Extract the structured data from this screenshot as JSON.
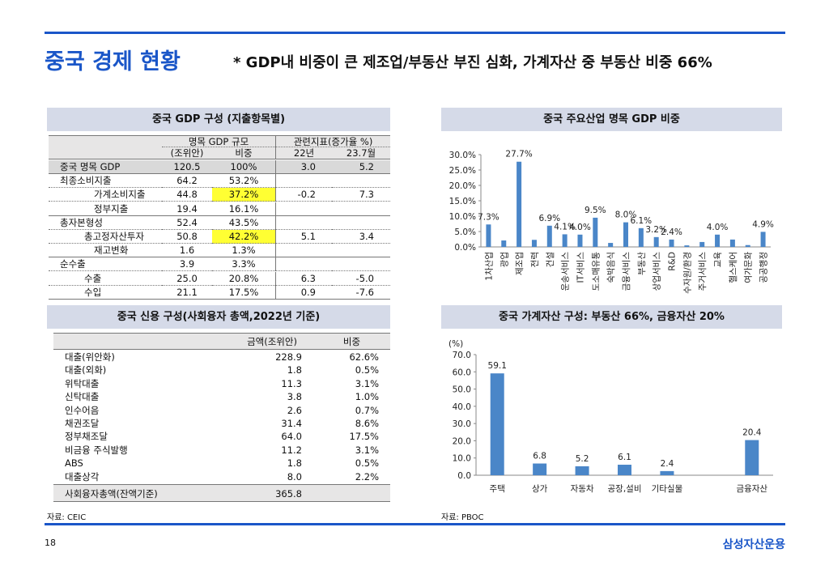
{
  "header": {
    "title": "중국 경제 현황",
    "subtitle": "* GDP내 비중이 큰 제조업/부동산 부진 심화, 가계자산 중 부동산 비중 66%"
  },
  "gdp_table": {
    "title": "중국 GDP 구성 (지출항목별)",
    "header_top": [
      "명목 GDP 규모",
      "관련지표(증가율 %)"
    ],
    "header_sub": [
      "(조위안)",
      "비중",
      "22년",
      "23.7월"
    ],
    "rows": [
      [
        "중국 명목 GDP",
        "120.5",
        "100%",
        "3.0",
        "5.2"
      ],
      [
        "최종소비지출",
        "64.2",
        "53.2%",
        null,
        null
      ],
      [
        "가계소비지출",
        "44.8",
        "37.2%",
        "-0.2",
        "7.3"
      ],
      [
        "정부지출",
        "19.4",
        "16.1%",
        null,
        null
      ],
      [
        "총자본형성",
        "52.4",
        "43.5%",
        null,
        null
      ],
      [
        "총고정자산투자",
        "50.8",
        "42.2%",
        "5.1",
        "3.4"
      ],
      [
        "재고변화",
        "1.6",
        "1.3%",
        null,
        null
      ],
      [
        "순수출",
        "3.9",
        "3.3%",
        null,
        null
      ],
      [
        "수출",
        "25.0",
        "20.8%",
        "6.3",
        "-5.0"
      ],
      [
        "수입",
        "21.1",
        "17.5%",
        "0.9",
        "-7.6"
      ]
    ]
  },
  "credit_table": {
    "title": "중국 신용 구성(사회융자 총액,2022년 기준)",
    "header": [
      "금액(조위안)",
      "비중"
    ],
    "rows": [
      [
        "대출(위안화)",
        "228.9",
        "62.6%"
      ],
      [
        "대출(외화)",
        "1.8",
        "0.5%"
      ],
      [
        "위탁대출",
        "11.3",
        "3.1%"
      ],
      [
        "신탁대출",
        "3.8",
        "1.0%"
      ],
      [
        "인수어음",
        "2.6",
        "0.7%"
      ],
      [
        "채권조달",
        "31.4",
        "8.6%"
      ],
      [
        "정부채조달",
        "64.0",
        "17.5%"
      ],
      [
        "비금융 주식발행",
        "11.2",
        "3.1%"
      ],
      [
        "ABS",
        "1.8",
        "0.5%"
      ],
      [
        "대출상각",
        "8.0",
        "2.2%"
      ]
    ],
    "total": [
      "사회융자총액(잔액기준)",
      "365.8"
    ]
  },
  "chart_data": [
    {
      "type": "bar",
      "title": "중국 주요산업 명목 GDP 비중",
      "color": "#4a86c8",
      "categories": [
        "1차산업",
        "광업",
        "제조업",
        "전력",
        "건설",
        "운송서비스",
        "IT서비스",
        "도소매유통",
        "숙박음식",
        "금융서비스",
        "부동산",
        "상업서비스",
        "R&D",
        "수자원/환경",
        "주거서비스",
        "교육",
        "헬스케어",
        "여가문화",
        "공공행정"
      ],
      "values": [
        7.3,
        2.1,
        27.7,
        2.3,
        6.9,
        4.1,
        4.0,
        9.5,
        1.3,
        8.0,
        6.1,
        3.2,
        2.4,
        0.5,
        1.6,
        4.0,
        2.4,
        0.6,
        4.9
      ],
      "value_labels": [
        "7.3%",
        null,
        "27.7%",
        null,
        "6.9%",
        "4.1%",
        "4.0%",
        "9.5%",
        null,
        "8.0%",
        "6.1%",
        "3.2%",
        "2.4%",
        null,
        null,
        "4.0%",
        null,
        null,
        "4.9%"
      ],
      "ylim": [
        0,
        30
      ],
      "yticks": [
        {
          "value": 0,
          "label": "0.0%"
        },
        {
          "value": 5,
          "label": "5.0%"
        },
        {
          "value": 10,
          "label": "10.0%"
        },
        {
          "value": 15,
          "label": "15.0%"
        },
        {
          "value": 20,
          "label": "20.0%"
        },
        {
          "value": 25,
          "label": "25.0%"
        },
        {
          "value": 30,
          "label": "30.0%"
        }
      ],
      "grid": false
    },
    {
      "type": "bar",
      "title": "중국 가계자산 구성: 부동산 66%, 금융자산 20%",
      "color": "#4a86c8",
      "y_label": "(%)",
      "categories": [
        "주택",
        "상가",
        "자동차",
        "공장,설비",
        "기타실물",
        null,
        "금융자산"
      ],
      "values": [
        59.1,
        6.8,
        5.2,
        6.1,
        2.4,
        null,
        20.4
      ],
      "ylim": [
        0,
        70
      ],
      "yticks": [
        {
          "value": 0,
          "label": "0.0"
        },
        {
          "value": 10,
          "label": "10.0"
        },
        {
          "value": 20,
          "label": "20.0"
        },
        {
          "value": 30,
          "label": "30.0"
        },
        {
          "value": 40,
          "label": "40.0"
        },
        {
          "value": 50,
          "label": "50.0"
        },
        {
          "value": 60,
          "label": "60.0"
        },
        {
          "value": 70,
          "label": "70.0"
        }
      ],
      "grid": false
    }
  ],
  "sources": [
    "자료: CEIC",
    "자료: PBOC"
  ],
  "footer": {
    "page": "18",
    "brand": "삼성자산운용"
  }
}
